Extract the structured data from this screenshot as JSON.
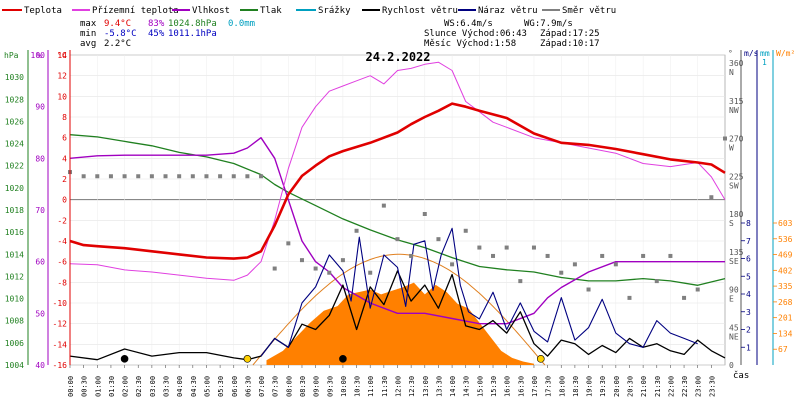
{
  "legend": [
    {
      "label": "Teplota",
      "color": "#e00000"
    },
    {
      "label": "Přízemní teplota",
      "color": "#e040e0"
    },
    {
      "label": "Vlhkost",
      "color": "#a000c0"
    },
    {
      "label": "Tlak",
      "color": "#208020"
    },
    {
      "label": "Srážky",
      "color": "#00a0c0"
    },
    {
      "label": "Rychlost větru",
      "color": "#000000"
    },
    {
      "label": "Náraz větru",
      "color": "#000080"
    },
    {
      "label": "Směr větru",
      "color": "#808080"
    }
  ],
  "stats": {
    "max_label": "max",
    "max_temp": "9.4°C",
    "max_hum": "83%",
    "max_press": "1024.8hPa",
    "max_rain": "0.0mm",
    "min_label": "min",
    "min_temp": "-5.8°C",
    "min_hum": "45%",
    "min_press": "1011.1hPa",
    "avg_label": "avg",
    "avg_temp": "2.2°C",
    "ws": "WS:6.4m/s",
    "wg": "WG:7.9m/s",
    "sun": "Slunce Východ:06:43",
    "sun_set": "Západ:17:25",
    "moon": "Měsíc  Východ:1:58",
    "moon_set": "Západ:10:17"
  },
  "date": "24.2.2022",
  "x_axis_label": "čas",
  "axis_units": {
    "hpa": "hPa",
    "pct": "%",
    "degc": "°C",
    "deg": "°",
    "ms": "m/s",
    "mm": "mm",
    "wm2": "W/m²"
  },
  "chart_data": {
    "type": "line",
    "title": "24.2.2022",
    "x_ticks": [
      "00:00",
      "00:30",
      "01:00",
      "01:30",
      "02:00",
      "02:30",
      "03:00",
      "03:30",
      "04:00",
      "04:30",
      "05:00",
      "05:30",
      "06:00",
      "06:30",
      "07:00",
      "07:30",
      "08:00",
      "08:30",
      "09:00",
      "09:30",
      "10:00",
      "10:30",
      "11:00",
      "11:30",
      "12:00",
      "12:30",
      "13:00",
      "13:30",
      "14:00",
      "14:30",
      "15:00",
      "15:30",
      "16:00",
      "16:30",
      "17:00",
      "17:30",
      "18:00",
      "18:30",
      "19:00",
      "19:30",
      "20:00",
      "20:30",
      "21:00",
      "21:30",
      "22:00",
      "22:30",
      "23:00",
      "23:30"
    ],
    "temp_axis": {
      "min": -16,
      "max": 14,
      "ticks": [
        14,
        12,
        10,
        8,
        6,
        4,
        2,
        0,
        -2,
        -4,
        -6,
        -8,
        -10,
        -12,
        -14,
        -16
      ]
    },
    "humidity_axis": {
      "min": 40,
      "max": 100,
      "ticks": [
        100,
        90,
        80,
        70,
        60,
        50,
        40
      ]
    },
    "pressure_axis": {
      "min": 1004,
      "max": 1032,
      "ticks": [
        1030,
        1028,
        1026,
        1024,
        1022,
        1020,
        1018,
        1016,
        1014,
        1012,
        1010,
        1008,
        1006,
        1004
      ]
    },
    "direction_axis": {
      "ticks": [
        {
          "v": "360",
          "d": "N"
        },
        {
          "v": "315",
          "d": "NW"
        },
        {
          "v": "270",
          "d": "W"
        },
        {
          "v": "225",
          "d": "SW"
        },
        {
          "v": "180",
          "d": "S"
        },
        {
          "v": "135",
          "d": "SE"
        },
        {
          "v": "90",
          "d": "E"
        },
        {
          "v": "45",
          "d": "NE"
        },
        {
          "v": "0",
          "d": ""
        }
      ]
    },
    "wind_axis": {
      "ticks": [
        8,
        7,
        6,
        5,
        4,
        3,
        2,
        1
      ]
    },
    "rain_axis": {
      "ticks": [
        1
      ]
    },
    "solar_axis": {
      "ticks": [
        603,
        536,
        469,
        402,
        335,
        268,
        201,
        134,
        67
      ]
    },
    "series": [
      {
        "name": "Teplota",
        "color": "#e00000",
        "hours": [
          0,
          0.5,
          1,
          2,
          3,
          4,
          5,
          6,
          6.5,
          7,
          7.5,
          8,
          8.5,
          9,
          9.5,
          10,
          11,
          12,
          12.5,
          13,
          13.5,
          14,
          14.5,
          15,
          16,
          17,
          18,
          19,
          20,
          21,
          22,
          23,
          23.5,
          24
        ],
        "values": [
          -4,
          -4.4,
          -4.5,
          -4.7,
          -5,
          -5.3,
          -5.6,
          -5.7,
          -5.6,
          -5,
          -2.5,
          0.5,
          2.3,
          3.3,
          4.2,
          4.7,
          5.5,
          6.5,
          7.3,
          8,
          8.6,
          9.3,
          9.0,
          8.6,
          7.9,
          6.4,
          5.5,
          5.3,
          4.9,
          4.4,
          3.9,
          3.6,
          3.4,
          2.6
        ]
      },
      {
        "name": "Přízemní teplota",
        "color": "#e040e0",
        "hours": [
          0,
          1,
          2,
          3,
          4,
          5,
          6,
          6.5,
          7,
          7.5,
          8,
          8.5,
          9,
          9.5,
          10,
          10.5,
          11,
          11.5,
          12,
          12.5,
          13,
          13.5,
          14,
          14.5,
          15,
          15.5,
          16,
          17,
          18,
          19,
          20,
          21,
          22,
          23,
          23.5,
          24
        ],
        "values": [
          -6.2,
          -6.3,
          -6.8,
          -7,
          -7.3,
          -7.6,
          -7.8,
          -7.3,
          -6,
          -2,
          3,
          7,
          9,
          10.5,
          11,
          11.5,
          12,
          11.2,
          12.5,
          12.7,
          13.1,
          13.3,
          12.5,
          9.5,
          8.5,
          7.5,
          7,
          6,
          5.5,
          5,
          4.5,
          3.5,
          3.2,
          3.6,
          2.2,
          0
        ]
      },
      {
        "name": "Vlhkost",
        "color": "#a000c0",
        "hours": [
          0,
          1,
          2,
          3,
          4,
          5,
          6,
          6.5,
          7,
          7.5,
          8,
          8.5,
          9,
          9.5,
          10,
          11,
          12,
          13,
          14,
          15,
          16,
          17,
          17.5,
          18,
          19,
          20,
          21,
          22,
          23,
          24
        ],
        "values": [
          80,
          80.5,
          80.6,
          80.6,
          80.6,
          80.6,
          81,
          82,
          84,
          80,
          72,
          64,
          60,
          58,
          55,
          52,
          50,
          50,
          49,
          48,
          48,
          50,
          53,
          55,
          58,
          60,
          60,
          60,
          60,
          60
        ]
      },
      {
        "name": "Tlak",
        "color": "#208020",
        "hours": [
          0,
          1,
          2,
          3,
          4,
          5,
          6,
          7,
          7.5,
          8,
          9,
          10,
          11,
          12,
          13,
          14,
          15,
          16,
          17,
          18,
          19,
          20,
          21,
          22,
          23,
          24
        ],
        "values": [
          1024.8,
          1024.6,
          1024.2,
          1023.8,
          1023.2,
          1022.8,
          1022.2,
          1021.2,
          1020.3,
          1019.6,
          1018.4,
          1017.2,
          1016.2,
          1015.3,
          1014.6,
          1013.7,
          1012.9,
          1012.6,
          1012.4,
          1011.9,
          1011.6,
          1011.6,
          1011.8,
          1011.6,
          1011.2,
          1011.8
        ]
      },
      {
        "name": "Rychlost větru",
        "color": "#000000",
        "hours": [
          0,
          1,
          2,
          3,
          4,
          5,
          6,
          6.5,
          7,
          7.5,
          8,
          8.5,
          9,
          9.5,
          10,
          10.5,
          11,
          11.5,
          12,
          12.5,
          13,
          13.5,
          14,
          14.5,
          15,
          15.5,
          16,
          16.5,
          17,
          17.5,
          18,
          18.5,
          19,
          19.5,
          20,
          20.5,
          21,
          21.5,
          22,
          22.5,
          23,
          23.5,
          24
        ],
        "values": [
          0.5,
          0.3,
          0.9,
          0.5,
          0.7,
          0.7,
          0.4,
          0.3,
          0.5,
          1.5,
          1.0,
          2.3,
          2.0,
          2.8,
          4.5,
          2.0,
          4.4,
          3.4,
          5.3,
          3.6,
          4.5,
          3.2,
          5.1,
          2.2,
          2.0,
          2.5,
          1.8,
          3.0,
          1.2,
          0.5,
          1.4,
          1.2,
          0.6,
          1.1,
          0.7,
          1.5,
          1.0,
          1.2,
          0.8,
          0.6,
          1.4,
          0.8,
          0.4
        ]
      },
      {
        "name": "Náraz větru",
        "color": "#000080",
        "hours": [
          7,
          7.5,
          8,
          8.5,
          9,
          9.5,
          10,
          10.3,
          10.6,
          11,
          11.5,
          12,
          12.3,
          12.6,
          13,
          13.3,
          13.6,
          14,
          14.3,
          14.6,
          15,
          15.5,
          16,
          16.5,
          17,
          17.5,
          18,
          18.5,
          19,
          19.5,
          20,
          20.5,
          21,
          21.5,
          22,
          22.5,
          23
        ],
        "values": [
          0.5,
          1.5,
          1.0,
          3.5,
          4.4,
          6.2,
          5.3,
          3.6,
          7.2,
          3.2,
          6.2,
          5.5,
          3.3,
          6.8,
          7.0,
          4.2,
          6.2,
          7.7,
          4.5,
          3.0,
          2.6,
          4.1,
          2.0,
          3.5,
          1.9,
          1.3,
          3.8,
          1.4,
          2.1,
          3.7,
          1.8,
          1.2,
          1.0,
          2.5,
          1.8,
          1.5,
          1.2
        ]
      },
      {
        "name": "Sluneční svit",
        "color": "#ff8000",
        "hours": [
          7.2,
          7.8,
          8.3,
          8.8,
          9.3,
          9.8,
          10.2,
          10.6,
          11,
          11.4,
          11.8,
          12.2,
          12.6,
          13,
          13.4,
          13.8,
          14.2,
          14.6,
          15,
          15.4,
          15.8,
          16.2,
          16.6,
          17
        ],
        "values": [
          20,
          60,
          120,
          180,
          230,
          250,
          300,
          310,
          320,
          300,
          315,
          330,
          350,
          300,
          340,
          310,
          260,
          240,
          180,
          120,
          60,
          30,
          15,
          5
        ]
      }
    ],
    "direction_points": [
      {
        "h": 0,
        "deg": 230
      },
      {
        "h": 0.5,
        "deg": 225
      },
      {
        "h": 1,
        "deg": 225
      },
      {
        "h": 1.5,
        "deg": 225
      },
      {
        "h": 2,
        "deg": 225
      },
      {
        "h": 2.5,
        "deg": 225
      },
      {
        "h": 3,
        "deg": 225
      },
      {
        "h": 3.5,
        "deg": 225
      },
      {
        "h": 4,
        "deg": 225
      },
      {
        "h": 4.5,
        "deg": 225
      },
      {
        "h": 5,
        "deg": 225
      },
      {
        "h": 5.5,
        "deg": 225
      },
      {
        "h": 6,
        "deg": 225
      },
      {
        "h": 6.5,
        "deg": 225
      },
      {
        "h": 7,
        "deg": 225
      },
      {
        "h": 7.5,
        "deg": 115
      },
      {
        "h": 8,
        "deg": 145
      },
      {
        "h": 8.5,
        "deg": 125
      },
      {
        "h": 9,
        "deg": 115
      },
      {
        "h": 9.5,
        "deg": 110
      },
      {
        "h": 10,
        "deg": 125
      },
      {
        "h": 10.5,
        "deg": 160
      },
      {
        "h": 11,
        "deg": 110
      },
      {
        "h": 11.5,
        "deg": 190
      },
      {
        "h": 12,
        "deg": 150
      },
      {
        "h": 12.5,
        "deg": 130
      },
      {
        "h": 13,
        "deg": 180
      },
      {
        "h": 13.5,
        "deg": 150
      },
      {
        "h": 14,
        "deg": 120
      },
      {
        "h": 14.5,
        "deg": 160
      },
      {
        "h": 15,
        "deg": 140
      },
      {
        "h": 15.5,
        "deg": 130
      },
      {
        "h": 16,
        "deg": 140
      },
      {
        "h": 16.5,
        "deg": 100
      },
      {
        "h": 17,
        "deg": 140
      },
      {
        "h": 17.5,
        "deg": 130
      },
      {
        "h": 18,
        "deg": 110
      },
      {
        "h": 18.5,
        "deg": 120
      },
      {
        "h": 19,
        "deg": 90
      },
      {
        "h": 19.5,
        "deg": 130
      },
      {
        "h": 20,
        "deg": 120
      },
      {
        "h": 20.5,
        "deg": 80
      },
      {
        "h": 21,
        "deg": 130
      },
      {
        "h": 21.5,
        "deg": 100
      },
      {
        "h": 22,
        "deg": 130
      },
      {
        "h": 22.5,
        "deg": 80
      },
      {
        "h": 23,
        "deg": 90
      },
      {
        "h": 23.5,
        "deg": 200
      },
      {
        "h": 24,
        "deg": 270
      }
    ],
    "markers": [
      {
        "h": 2.0,
        "temp": -15.5,
        "color": "#000000"
      },
      {
        "h": 6.5,
        "temp": -15.5,
        "color": "#ffd000"
      },
      {
        "h": 10.0,
        "temp": -15.5,
        "color": "#000000"
      },
      {
        "h": 17.25,
        "temp": -15.5,
        "color": "#ffd000"
      }
    ]
  }
}
